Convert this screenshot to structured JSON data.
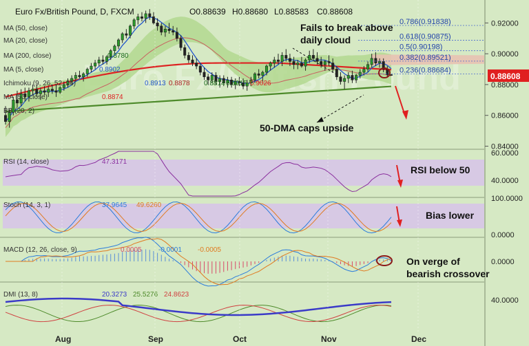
{
  "header": {
    "symbol": "Euro Fx/British Pound, D, FXCM",
    "ohlc": [
      "O0.88639",
      "H0.88680",
      "L0.88583",
      "C0.88608"
    ]
  },
  "indicators": [
    {
      "label": "MA (50, close)",
      "value": ""
    },
    {
      "label": "MA (20, close)",
      "value": ""
    },
    {
      "label": "MA (200, close)",
      "value": "0.8780"
    },
    {
      "label": "MA (5, close)",
      "value": "0.8902"
    },
    {
      "label": "Ichimoku (9, 26, 52, 26)",
      "values": [
        "0.8913",
        "0.8878",
        "0.8814",
        "0.8915",
        "0.9026"
      ]
    },
    {
      "label": "MA (50, close)",
      "value": "0.8874"
    },
    {
      "label": "BB (20, 2)",
      "value": ""
    }
  ],
  "fib_levels": [
    {
      "label": "0.786(0.91838)",
      "value": 0.91838
    },
    {
      "label": "0.618(0.90875)",
      "value": 0.90875
    },
    {
      "label": "0.5(0.90198)",
      "value": 0.90198
    },
    {
      "label": "0.382(0.89521)",
      "value": 0.89521
    },
    {
      "label": "0.236(0.88684)",
      "value": 0.88684
    }
  ],
  "annotations": {
    "cloud": "Fails to break above\ndaily cloud",
    "dma": "50-DMA caps upside",
    "rsi": "RSI below 50",
    "stoch": "Bias lower",
    "macd": "On verge of\nbearish crossover"
  },
  "price_label": "0.88608",
  "subpanels": {
    "rsi": {
      "label": "RSI (14, close)",
      "value": "47.3171",
      "ticks": [
        "60.0000",
        "40.0000"
      ]
    },
    "stoch": {
      "label": "Stoch (14, 3, 1)",
      "values": [
        "37.9645",
        "49.6260"
      ],
      "ticks": [
        "100.0000",
        "0.0000"
      ]
    },
    "macd": {
      "label": "MACD (12, 26, close, 9)",
      "values": [
        "0.0005",
        "-0.0001",
        "-0.0005"
      ],
      "ticks": [
        "0.0000"
      ]
    },
    "dmi": {
      "label": "DMI (13, 8)",
      "values": [
        "20.3273",
        "25.5276",
        "24.8623"
      ],
      "ticks": [
        "40.0000"
      ]
    }
  },
  "colors": {
    "background": "#d6e9c4",
    "ma200": "#dd2222",
    "ma50": "#4d8a2a",
    "ma5": "#2255cc",
    "cloud": "#b3d890",
    "cloud_bear": "#e8c2b3",
    "osc_band": "#d7c5e8",
    "rsi_line": "#8a2f9e",
    "annotation_arrow": "#e02020",
    "price_tag": "#e02020"
  },
  "chart_data": {
    "type": "candlestick",
    "x_ticks": [
      "Aug",
      "Sep",
      "Oct",
      "Nov",
      "Dec"
    ],
    "y_ticks": [
      "0.92000",
      "0.90000",
      "0.88000",
      "0.86000",
      "0.84000"
    ],
    "ylim": [
      0.838,
      0.934
    ],
    "candles": [
      [
        0.86,
        0.866,
        0.854,
        0.856
      ],
      [
        0.856,
        0.864,
        0.852,
        0.862
      ],
      [
        0.862,
        0.872,
        0.86,
        0.87
      ],
      [
        0.87,
        0.876,
        0.865,
        0.868
      ],
      [
        0.868,
        0.877,
        0.866,
        0.874
      ],
      [
        0.874,
        0.878,
        0.869,
        0.872
      ],
      [
        0.872,
        0.878,
        0.869,
        0.876
      ],
      [
        0.876,
        0.88,
        0.873,
        0.877
      ],
      [
        0.877,
        0.88,
        0.872,
        0.874
      ],
      [
        0.874,
        0.878,
        0.87,
        0.876
      ],
      [
        0.876,
        0.879,
        0.873,
        0.875
      ],
      [
        0.875,
        0.879,
        0.872,
        0.877
      ],
      [
        0.877,
        0.88,
        0.874,
        0.876
      ],
      [
        0.876,
        0.88,
        0.872,
        0.875
      ],
      [
        0.875,
        0.879,
        0.874,
        0.878
      ],
      [
        0.878,
        0.882,
        0.876,
        0.88
      ],
      [
        0.88,
        0.884,
        0.878,
        0.882
      ],
      [
        0.882,
        0.886,
        0.88,
        0.884
      ],
      [
        0.884,
        0.888,
        0.882,
        0.886
      ],
      [
        0.886,
        0.889,
        0.884,
        0.885
      ],
      [
        0.885,
        0.888,
        0.882,
        0.887
      ],
      [
        0.887,
        0.891,
        0.885,
        0.89
      ],
      [
        0.89,
        0.894,
        0.888,
        0.892
      ],
      [
        0.892,
        0.896,
        0.89,
        0.894
      ],
      [
        0.894,
        0.898,
        0.892,
        0.896
      ],
      [
        0.896,
        0.899,
        0.893,
        0.895
      ],
      [
        0.895,
        0.899,
        0.893,
        0.898
      ],
      [
        0.898,
        0.903,
        0.896,
        0.902
      ],
      [
        0.902,
        0.906,
        0.9,
        0.905
      ],
      [
        0.905,
        0.91,
        0.903,
        0.909
      ],
      [
        0.909,
        0.914,
        0.907,
        0.913
      ],
      [
        0.913,
        0.916,
        0.91,
        0.912
      ],
      [
        0.912,
        0.919,
        0.91,
        0.918
      ],
      [
        0.918,
        0.923,
        0.916,
        0.922
      ],
      [
        0.922,
        0.926,
        0.919,
        0.924
      ],
      [
        0.924,
        0.927,
        0.921,
        0.923
      ],
      [
        0.923,
        0.928,
        0.92,
        0.926
      ],
      [
        0.926,
        0.929,
        0.922,
        0.924
      ],
      [
        0.924,
        0.927,
        0.919,
        0.92
      ],
      [
        0.92,
        0.923,
        0.915,
        0.918
      ],
      [
        0.918,
        0.92,
        0.912,
        0.914
      ],
      [
        0.914,
        0.918,
        0.911,
        0.916
      ],
      [
        0.916,
        0.92,
        0.913,
        0.915
      ],
      [
        0.915,
        0.918,
        0.912,
        0.914
      ],
      [
        0.914,
        0.917,
        0.908,
        0.91
      ],
      [
        0.91,
        0.912,
        0.902,
        0.904
      ],
      [
        0.904,
        0.906,
        0.897,
        0.899
      ],
      [
        0.899,
        0.901,
        0.894,
        0.896
      ],
      [
        0.896,
        0.899,
        0.892,
        0.894
      ],
      [
        0.894,
        0.897,
        0.89,
        0.892
      ],
      [
        0.892,
        0.894,
        0.886,
        0.888
      ],
      [
        0.888,
        0.891,
        0.883,
        0.885
      ],
      [
        0.885,
        0.887,
        0.88,
        0.883
      ],
      [
        0.883,
        0.888,
        0.881,
        0.886
      ],
      [
        0.886,
        0.888,
        0.88,
        0.882
      ],
      [
        0.882,
        0.886,
        0.878,
        0.884
      ],
      [
        0.884,
        0.886,
        0.879,
        0.881
      ],
      [
        0.881,
        0.885,
        0.878,
        0.883
      ],
      [
        0.883,
        0.885,
        0.878,
        0.88
      ],
      [
        0.88,
        0.884,
        0.877,
        0.882
      ],
      [
        0.882,
        0.885,
        0.879,
        0.881
      ],
      [
        0.881,
        0.884,
        0.877,
        0.879
      ],
      [
        0.879,
        0.883,
        0.876,
        0.881
      ],
      [
        0.881,
        0.885,
        0.879,
        0.883
      ],
      [
        0.883,
        0.888,
        0.881,
        0.887
      ],
      [
        0.887,
        0.89,
        0.884,
        0.886
      ],
      [
        0.886,
        0.889,
        0.882,
        0.888
      ],
      [
        0.888,
        0.893,
        0.886,
        0.892
      ],
      [
        0.892,
        0.895,
        0.889,
        0.894
      ],
      [
        0.894,
        0.898,
        0.891,
        0.896
      ],
      [
        0.896,
        0.9,
        0.893,
        0.895
      ],
      [
        0.895,
        0.901,
        0.892,
        0.899
      ],
      [
        0.899,
        0.903,
        0.895,
        0.897
      ],
      [
        0.897,
        0.9,
        0.892,
        0.895
      ],
      [
        0.895,
        0.898,
        0.89,
        0.893
      ],
      [
        0.893,
        0.896,
        0.89,
        0.894
      ],
      [
        0.894,
        0.898,
        0.891,
        0.892
      ],
      [
        0.892,
        0.897,
        0.889,
        0.896
      ],
      [
        0.896,
        0.902,
        0.894,
        0.899
      ],
      [
        0.899,
        0.903,
        0.895,
        0.897
      ],
      [
        0.897,
        0.901,
        0.893,
        0.895
      ],
      [
        0.895,
        0.898,
        0.891,
        0.893
      ],
      [
        0.893,
        0.896,
        0.889,
        0.895
      ],
      [
        0.895,
        0.899,
        0.892,
        0.894
      ],
      [
        0.894,
        0.897,
        0.888,
        0.89
      ],
      [
        0.89,
        0.892,
        0.883,
        0.885
      ],
      [
        0.885,
        0.888,
        0.88,
        0.882
      ],
      [
        0.882,
        0.886,
        0.877,
        0.884
      ],
      [
        0.884,
        0.888,
        0.881,
        0.886
      ],
      [
        0.886,
        0.889,
        0.881,
        0.883
      ],
      [
        0.883,
        0.887,
        0.881,
        0.886
      ],
      [
        0.886,
        0.89,
        0.884,
        0.888
      ],
      [
        0.888,
        0.892,
        0.886,
        0.89
      ],
      [
        0.89,
        0.895,
        0.888,
        0.893
      ],
      [
        0.893,
        0.9,
        0.891,
        0.897
      ],
      [
        0.897,
        0.901,
        0.892,
        0.894
      ],
      [
        0.894,
        0.897,
        0.891,
        0.895
      ],
      [
        0.895,
        0.897,
        0.888,
        0.89
      ],
      [
        0.89,
        0.892,
        0.885,
        0.8864
      ],
      [
        0.8864,
        0.8868,
        0.8858,
        0.8861
      ]
    ]
  }
}
